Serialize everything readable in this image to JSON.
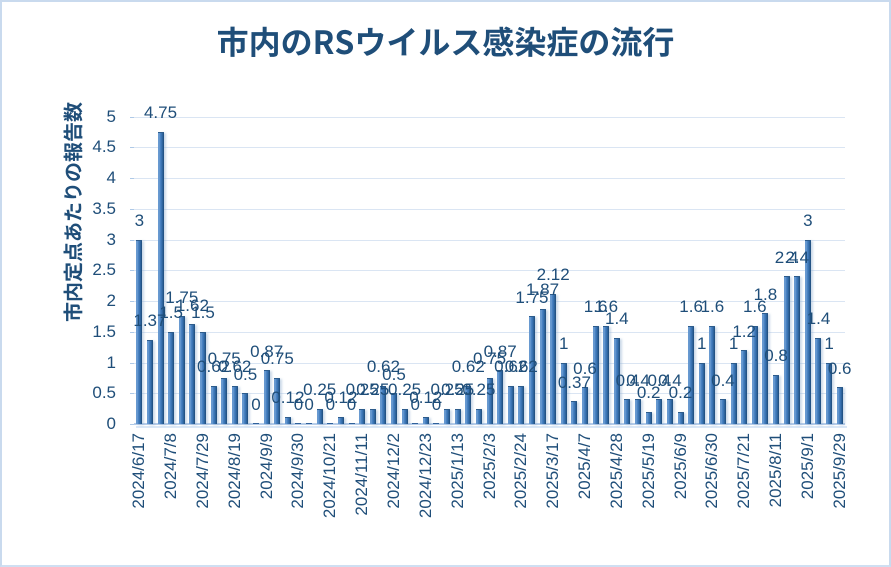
{
  "chart_data": {
    "type": "bar",
    "title": "市内のRSウイルス感染症の流行",
    "ylabel": "市内定点あたりの報告数",
    "xlabel": "",
    "ylim": [
      0,
      5
    ],
    "y_tick_step": 0.5,
    "y_tick_labels": [
      "0",
      "0.5",
      "1",
      "1.5",
      "2",
      "2.5",
      "3",
      "3.5",
      "4",
      "4.5",
      "5"
    ],
    "grid": true,
    "legend": false,
    "x_tick_interval": 3,
    "x_tick_labels": [
      "2024/6/17",
      "2024/7/8",
      "2024/7/29",
      "2024/8/19",
      "2024/9/9",
      "2024/9/30",
      "2024/10/21",
      "2024/11/11",
      "2024/12/2",
      "2024/12/23",
      "2025/1/13",
      "2025/2/3",
      "2025/2/24",
      "2025/3/17",
      "2025/4/7",
      "2025/4/28",
      "2025/5/19",
      "2025/6/9",
      "2025/6/30",
      "2025/7/21",
      "2025/8/11",
      "2025/9/1",
      "2025/9/29"
    ],
    "values": [
      3,
      1.37,
      4.75,
      1.5,
      1.75,
      1.62,
      1.5,
      0.62,
      0.75,
      0.62,
      0.5,
      0,
      0.87,
      0.75,
      0.12,
      0,
      0,
      0.25,
      0,
      0.12,
      0,
      0.25,
      0.25,
      0.62,
      0.5,
      0.25,
      0,
      0.12,
      0,
      0.25,
      0.25,
      0.62,
      0.25,
      0.75,
      0.87,
      0.62,
      0.62,
      1.75,
      1.87,
      2.12,
      1,
      0.37,
      0.6,
      1.6,
      1.6,
      1.4,
      0.4,
      0.4,
      0.2,
      0.4,
      0.4,
      0.2,
      1.6,
      1,
      1.6,
      0.4,
      1,
      1.2,
      1.6,
      1.8,
      0.8,
      2.4,
      2.4,
      3,
      1.4,
      1,
      0.6
    ],
    "data_labels": [
      "3",
      "1.37",
      "4.75",
      "1.5",
      "1.75",
      "1.62",
      "1.5",
      "0.62",
      "0.75",
      "0.62",
      "0.5",
      "0",
      "0.87",
      "0.75",
      "0.12",
      "0",
      "0",
      "0.25",
      "0",
      "0.12",
      "0",
      "0.25",
      "0.25",
      "0.62",
      "0.5",
      "0.25",
      "0",
      "0.12",
      "0",
      "0.25",
      "0.25",
      "0.62",
      "0.25",
      "0.75",
      "0.87",
      "0.62",
      "0.62",
      "1.75",
      "1.87",
      "2.12",
      "1",
      "0.37",
      "0.6",
      "1.6",
      "1.6",
      "1.4",
      "0.4",
      "0.4",
      "0.2",
      "0.4",
      "0.4",
      "0.2",
      "1.6",
      "1",
      "1.6",
      "0.4",
      "1",
      "1.2",
      "1.6",
      "1.8",
      "0.8",
      "2.4",
      "2.4",
      "3",
      "1.4",
      "1",
      "0.6"
    ],
    "colors": {
      "title": "#1F4E79",
      "labels": "#1F4E79",
      "bar": "#3E79BB",
      "gridline": "#DAE5F3",
      "axis_line": "#B7CDE9",
      "chart_border": "#C9DAEE"
    }
  }
}
